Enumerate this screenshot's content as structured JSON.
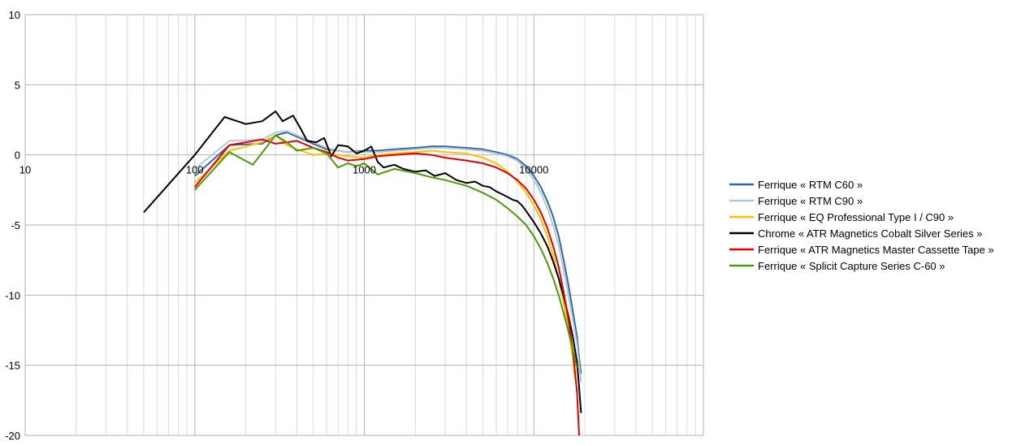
{
  "chart_data": {
    "type": "line",
    "title": "",
    "xlabel": "",
    "ylabel": "",
    "x_scale": "log",
    "xlim": [
      10,
      100000
    ],
    "ylim": [
      -20,
      10
    ],
    "x_ticks": [
      "10",
      "100",
      "1000",
      "10000"
    ],
    "y_ticks": [
      "10",
      "5",
      "0",
      "-5",
      "-10",
      "-15",
      "-20"
    ],
    "grid": true,
    "legend_position": "right",
    "series": [
      {
        "name": "Ferrique « RTM C60 »",
        "color": "#3465a4",
        "x": [
          100,
          160,
          250,
          300,
          350,
          400,
          500,
          600,
          700,
          800,
          1000,
          1200,
          1500,
          2000,
          2500,
          3000,
          4000,
          5000,
          6000,
          7000,
          8000,
          9000,
          10000,
          11000,
          12000,
          13000,
          14000,
          15000,
          16000,
          17000,
          18000,
          18500,
          19000
        ],
        "values": [
          -1.5,
          0.7,
          0.8,
          1.4,
          1.6,
          1.3,
          0.8,
          0.4,
          0.3,
          0.2,
          0.3,
          0.3,
          0.4,
          0.5,
          0.6,
          0.6,
          0.5,
          0.4,
          0.2,
          0.0,
          -0.3,
          -0.8,
          -1.5,
          -2.3,
          -3.3,
          -4.4,
          -5.8,
          -7.5,
          -9.3,
          -11.2,
          -13.0,
          -14.5,
          -15.6
        ]
      },
      {
        "name": "Ferrique « RTM C90 »",
        "color": "#b4c7dc",
        "x": [
          100,
          160,
          250,
          300,
          350,
          400,
          500,
          600,
          700,
          800,
          1000,
          1200,
          1500,
          2000,
          2500,
          3000,
          4000,
          5000,
          6000,
          7000,
          8000,
          9000,
          10000,
          11000,
          12000,
          13000,
          14000,
          15000,
          16000,
          17000,
          18000,
          18500,
          19000
        ],
        "values": [
          -1.0,
          1.0,
          1.1,
          1.6,
          1.7,
          1.4,
          0.9,
          0.5,
          0.3,
          0.2,
          0.2,
          0.2,
          0.3,
          0.4,
          0.5,
          0.5,
          0.4,
          0.3,
          0.1,
          -0.1,
          -0.4,
          -1.0,
          -1.8,
          -2.7,
          -3.8,
          -5.0,
          -6.5,
          -8.2,
          -10.0,
          -11.8,
          -13.5,
          -15.0,
          -16.2
        ]
      },
      {
        "name": "Ferrique « EQ Professional Type I / C90 »",
        "color": "#ffc000",
        "x": [
          100,
          160,
          250,
          300,
          350,
          400,
          500,
          600,
          700,
          800,
          1000,
          1200,
          1500,
          2000,
          2500,
          3000,
          4000,
          5000,
          6000,
          7000,
          8000,
          9000,
          10000,
          11000,
          12000,
          13000,
          14000,
          15000,
          16000,
          17000,
          17500
        ],
        "values": [
          -2.0,
          0.3,
          0.9,
          1.4,
          0.7,
          0.4,
          0.0,
          0.1,
          0.0,
          -0.1,
          -0.2,
          0.0,
          0.1,
          0.2,
          0.3,
          0.2,
          0.1,
          -0.2,
          -0.6,
          -1.2,
          -1.9,
          -2.7,
          -3.6,
          -4.6,
          -5.8,
          -7.2,
          -8.8,
          -10.6,
          -12.5,
          -14.5,
          -16.0
        ]
      },
      {
        "name": "Chrome « ATR Magnetics Cobalt Silver Series »",
        "color": "#000000",
        "x": [
          50,
          100,
          150,
          200,
          250,
          300,
          330,
          380,
          420,
          460,
          520,
          580,
          640,
          700,
          800,
          900,
          1000,
          1100,
          1200,
          1300,
          1500,
          1700,
          2000,
          2300,
          2600,
          3000,
          3500,
          4000,
          4500,
          5000,
          5500,
          6000,
          6500,
          7000,
          7500,
          8000,
          8500,
          9000,
          10000,
          11000,
          12000,
          13000,
          14000,
          15000,
          16000,
          17000,
          18000,
          18500,
          19000
        ],
        "values": [
          -4.1,
          0.0,
          2.7,
          2.2,
          2.4,
          3.1,
          2.4,
          2.8,
          1.9,
          1.0,
          0.9,
          1.2,
          -0.1,
          0.7,
          0.6,
          0.1,
          0.3,
          0.6,
          -0.5,
          -0.9,
          -0.7,
          -1.0,
          -1.2,
          -1.1,
          -1.5,
          -1.3,
          -1.8,
          -2.0,
          -1.9,
          -2.2,
          -2.3,
          -2.6,
          -2.8,
          -3.0,
          -3.2,
          -3.3,
          -3.6,
          -4.0,
          -4.8,
          -5.6,
          -6.5,
          -7.6,
          -8.8,
          -10.1,
          -11.5,
          -13.0,
          -14.8,
          -16.6,
          -18.4
        ]
      },
      {
        "name": "Ferrique « ATR Magnetics Master Cassette Tape »",
        "color": "#e00000",
        "x": [
          100,
          160,
          250,
          300,
          350,
          400,
          500,
          600,
          700,
          800,
          1000,
          1200,
          1500,
          2000,
          2500,
          3000,
          4000,
          5000,
          6000,
          7000,
          8000,
          9000,
          10000,
          11000,
          12000,
          13000,
          14000,
          15000,
          16000,
          17000,
          18000,
          18500
        ],
        "values": [
          -2.3,
          0.7,
          1.1,
          0.8,
          0.9,
          1.0,
          0.5,
          0.2,
          -0.2,
          -0.4,
          -0.3,
          -0.1,
          0.0,
          0.1,
          0.0,
          -0.2,
          -0.4,
          -0.6,
          -0.9,
          -1.3,
          -1.8,
          -2.4,
          -3.2,
          -4.1,
          -5.2,
          -6.5,
          -8.0,
          -9.8,
          -11.8,
          -14.0,
          -17.0,
          -20.0
        ]
      },
      {
        "name": "Ferrique « Splicit Capture Series C-60 »",
        "color": "#4e9a06",
        "x": [
          100,
          160,
          220,
          300,
          350,
          400,
          500,
          600,
          700,
          800,
          900,
          1000,
          1200,
          1500,
          2000,
          2500,
          3000,
          4000,
          5000,
          6000,
          7000,
          8000,
          9000,
          10000,
          11000,
          12000,
          13000,
          14000,
          15000,
          16000,
          17000,
          18000
        ],
        "values": [
          -2.5,
          0.2,
          -0.7,
          1.4,
          0.9,
          0.3,
          0.5,
          0.1,
          -0.9,
          -0.6,
          -0.8,
          -0.6,
          -1.4,
          -1.0,
          -1.3,
          -1.6,
          -1.8,
          -2.2,
          -2.7,
          -3.2,
          -3.8,
          -4.4,
          -5.0,
          -5.8,
          -6.7,
          -7.7,
          -8.8,
          -10.0,
          -11.3,
          -12.6,
          -13.9,
          -15.2
        ]
      }
    ]
  }
}
